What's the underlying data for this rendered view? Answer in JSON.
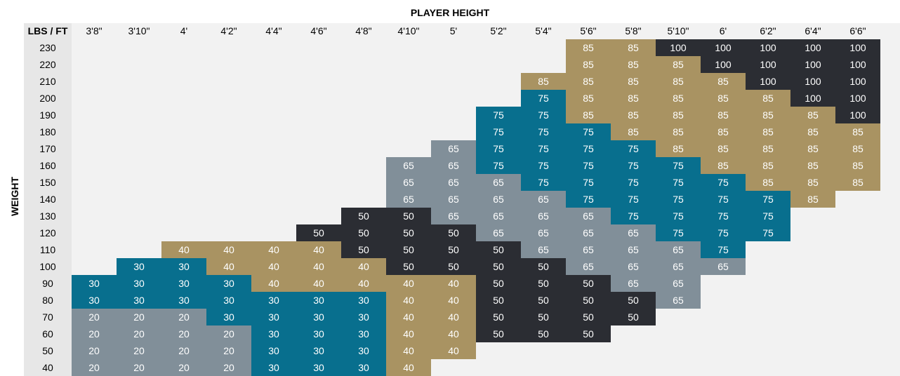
{
  "chart_data": {
    "type": "table",
    "title": "PLAYER HEIGHT",
    "ylabel": "WEIGHT",
    "corner_label": "LBS / FT",
    "heights": [
      "3'8\"",
      "3'10\"",
      "4'",
      "4'2\"",
      "4'4\"",
      "4'6\"",
      "4'8\"",
      "4'10\"",
      "5'",
      "5'2\"",
      "5'4\"",
      "5'6\"",
      "5'8\"",
      "5'10\"",
      "6'",
      "6'2\"",
      "6'4\"",
      "6'6\""
    ],
    "weights": [
      "230",
      "220",
      "210",
      "200",
      "190",
      "180",
      "170",
      "160",
      "150",
      "140",
      "130",
      "120",
      "110",
      "100",
      "90",
      "80",
      "70",
      "60",
      "50",
      "40"
    ],
    "colors": {
      "20": "#818f99",
      "30": "#086f8e",
      "40": "#a99362",
      "50": "#2b2d33",
      "65": "#818f99",
      "75": "#086f8e",
      "85": "#a99362",
      "100": "#2b2d33"
    },
    "values": [
      [
        null,
        null,
        null,
        null,
        null,
        null,
        null,
        null,
        null,
        null,
        null,
        "85",
        "85",
        "100",
        "100",
        "100",
        "100",
        "100"
      ],
      [
        null,
        null,
        null,
        null,
        null,
        null,
        null,
        null,
        null,
        null,
        null,
        "85",
        "85",
        "85",
        "100",
        "100",
        "100",
        "100"
      ],
      [
        null,
        null,
        null,
        null,
        null,
        null,
        null,
        null,
        null,
        null,
        "85",
        "85",
        "85",
        "85",
        "85",
        "100",
        "100",
        "100"
      ],
      [
        null,
        null,
        null,
        null,
        null,
        null,
        null,
        null,
        null,
        null,
        "75",
        "85",
        "85",
        "85",
        "85",
        "85",
        "100",
        "100"
      ],
      [
        null,
        null,
        null,
        null,
        null,
        null,
        null,
        null,
        null,
        "75",
        "75",
        "85",
        "85",
        "85",
        "85",
        "85",
        "85",
        "100"
      ],
      [
        null,
        null,
        null,
        null,
        null,
        null,
        null,
        null,
        null,
        "75",
        "75",
        "75",
        "85",
        "85",
        "85",
        "85",
        "85",
        "85"
      ],
      [
        null,
        null,
        null,
        null,
        null,
        null,
        null,
        null,
        "65",
        "75",
        "75",
        "75",
        "75",
        "85",
        "85",
        "85",
        "85",
        "85"
      ],
      [
        null,
        null,
        null,
        null,
        null,
        null,
        null,
        "65",
        "65",
        "75",
        "75",
        "75",
        "75",
        "75",
        "85",
        "85",
        "85",
        "85"
      ],
      [
        null,
        null,
        null,
        null,
        null,
        null,
        null,
        "65",
        "65",
        "65",
        "75",
        "75",
        "75",
        "75",
        "75",
        "85",
        "85",
        "85"
      ],
      [
        null,
        null,
        null,
        null,
        null,
        null,
        null,
        "65",
        "65",
        "65",
        "65",
        "75",
        "75",
        "75",
        "75",
        "75",
        "85",
        null
      ],
      [
        null,
        null,
        null,
        null,
        null,
        null,
        "50",
        "50",
        "65",
        "65",
        "65",
        "65",
        "75",
        "75",
        "75",
        "75",
        null,
        null
      ],
      [
        null,
        null,
        null,
        null,
        null,
        "50",
        "50",
        "50",
        "50",
        "65",
        "65",
        "65",
        "65",
        "75",
        "75",
        "75",
        null,
        null
      ],
      [
        null,
        null,
        "40",
        "40",
        "40",
        "40",
        "50",
        "50",
        "50",
        "50",
        "65",
        "65",
        "65",
        "65",
        "75",
        null,
        null,
        null
      ],
      [
        null,
        "30",
        "30",
        "40",
        "40",
        "40",
        "40",
        "50",
        "50",
        "50",
        "50",
        "65",
        "65",
        "65",
        "65",
        null,
        null,
        null
      ],
      [
        "30",
        "30",
        "30",
        "30",
        "40",
        "40",
        "40",
        "40",
        "40",
        "50",
        "50",
        "50",
        "65",
        "65",
        null,
        null,
        null,
        null
      ],
      [
        "30",
        "30",
        "30",
        "30",
        "30",
        "30",
        "30",
        "40",
        "40",
        "50",
        "50",
        "50",
        "50",
        "65",
        null,
        null,
        null,
        null
      ],
      [
        "20",
        "20",
        "20",
        "30",
        "30",
        "30",
        "30",
        "40",
        "40",
        "50",
        "50",
        "50",
        "50",
        null,
        null,
        null,
        null,
        null
      ],
      [
        "20",
        "20",
        "20",
        "20",
        "30",
        "30",
        "30",
        "40",
        "40",
        "50",
        "50",
        "50",
        null,
        null,
        null,
        null,
        null,
        null
      ],
      [
        "20",
        "20",
        "20",
        "20",
        "30",
        "30",
        "30",
        "40",
        "40",
        null,
        null,
        null,
        null,
        null,
        null,
        null,
        null,
        null
      ],
      [
        "20",
        "20",
        "20",
        "20",
        "30",
        "30",
        "30",
        "40",
        null,
        null,
        null,
        null,
        null,
        null,
        null,
        null,
        null,
        null
      ]
    ]
  }
}
